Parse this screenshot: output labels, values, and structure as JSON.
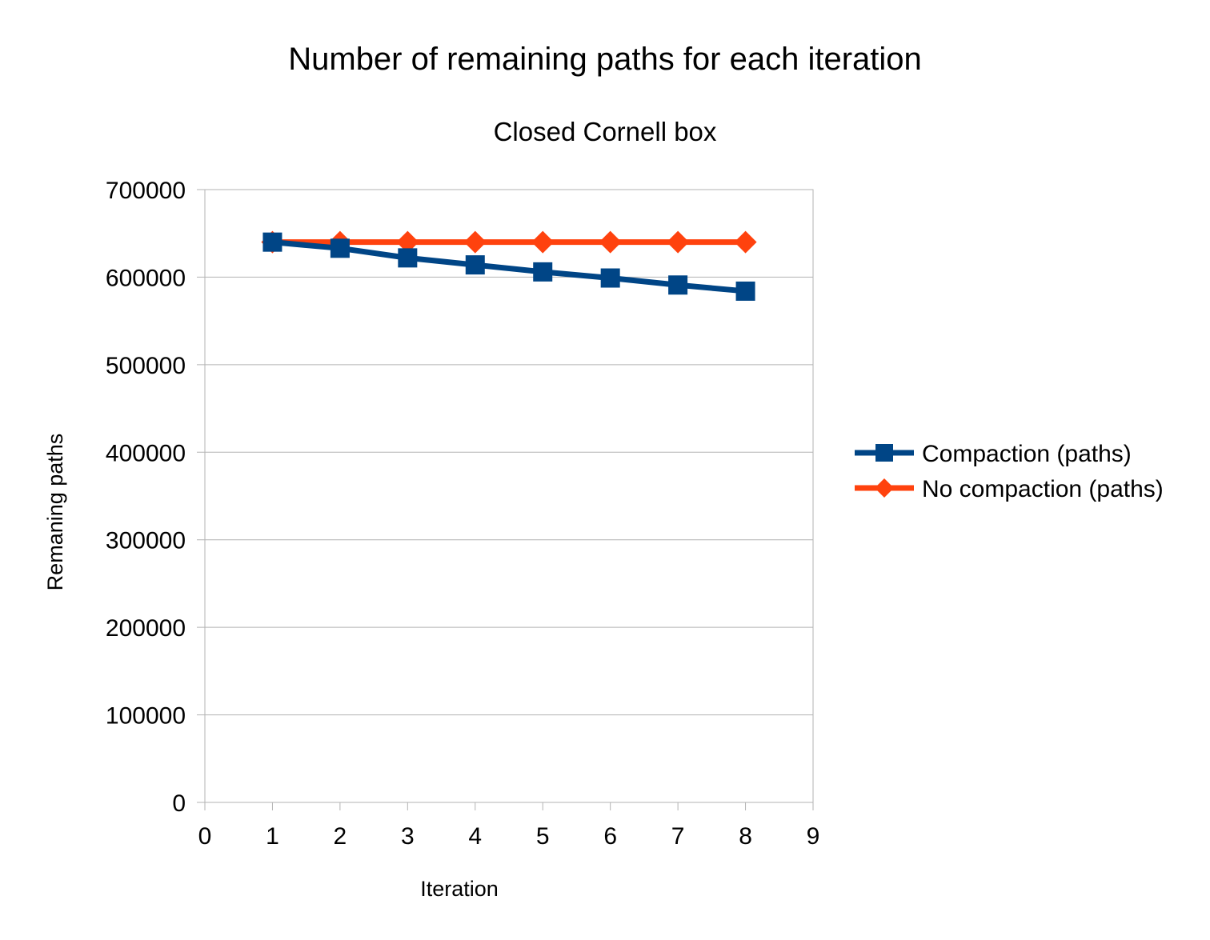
{
  "chart_data": {
    "type": "line",
    "title": "Number of remaining paths for each iteration",
    "subtitle": "Closed Cornell box",
    "xlabel": "Iteration",
    "ylabel": "Remaning paths",
    "xlim": [
      0,
      9
    ],
    "ylim": [
      0,
      700000
    ],
    "x_ticks": [
      "0",
      "1",
      "2",
      "3",
      "4",
      "5",
      "6",
      "7",
      "8",
      "9"
    ],
    "y_ticks": [
      "0",
      "100000",
      "200000",
      "300000",
      "400000",
      "500000",
      "600000",
      "700000"
    ],
    "grid": true,
    "legend_position": "right",
    "x": [
      1,
      2,
      3,
      4,
      5,
      6,
      7,
      8
    ],
    "series": [
      {
        "name": "Compaction (paths)",
        "color": "#004586",
        "marker": "square",
        "values": [
          640000,
          633000,
          622000,
          614000,
          606000,
          599000,
          591000,
          584000
        ]
      },
      {
        "name": "No compaction (paths)",
        "color": "#ff420e",
        "marker": "diamond",
        "values": [
          640000,
          640000,
          640000,
          640000,
          640000,
          640000,
          640000,
          640000
        ]
      }
    ]
  }
}
